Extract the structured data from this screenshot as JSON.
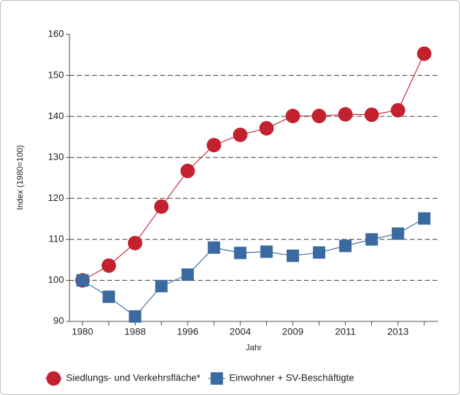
{
  "chart_data": {
    "type": "line",
    "x_label": "Jahr",
    "y_label": "Index (1980=100)",
    "categories": [
      "1980",
      null,
      "1988",
      null,
      "1996",
      null,
      "2004",
      null,
      "2009",
      null,
      "2011",
      null,
      "2013",
      null
    ],
    "series": [
      {
        "name": "Siedlungs- und Verkehrsfläche*",
        "color": "#c3212e",
        "marker": "circle",
        "values": [
          100,
          103.6,
          109.1,
          118,
          126.7,
          133,
          135.5,
          137.1,
          140.1,
          140.1,
          140.5,
          140.4,
          141.5,
          155.3
        ]
      },
      {
        "name": "Einwohner + SV-Beschäftigte",
        "color": "#3a6aa0",
        "marker": "square",
        "values": [
          100,
          96,
          91.2,
          98.6,
          101.4,
          108,
          106.7,
          107,
          106,
          106.8,
          108.4,
          110,
          111.4,
          115.1
        ]
      }
    ],
    "ylim": [
      90,
      160
    ],
    "yticks": [
      90,
      100,
      110,
      120,
      130,
      140,
      150,
      160
    ],
    "grid": true
  }
}
